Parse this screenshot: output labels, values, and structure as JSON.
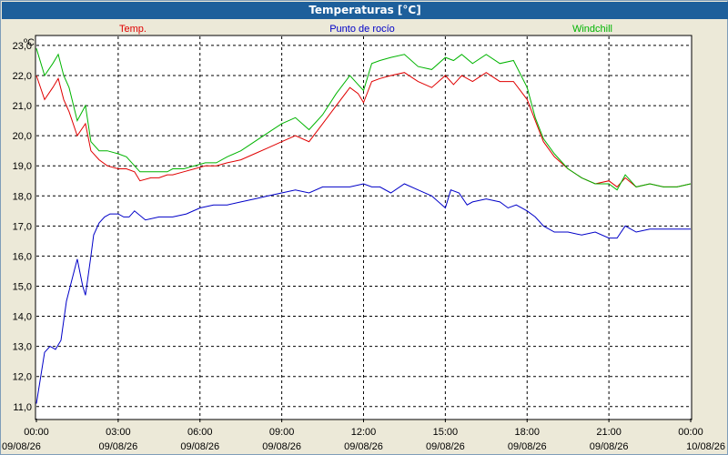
{
  "window": {
    "title": "Temperaturas [°C]"
  },
  "colors": {
    "temp": "#e00000",
    "dew": "#0000c8",
    "windchill": "#00b400",
    "titlebar": "#1d5f9b",
    "background": "#ece9d8"
  },
  "chart_data": {
    "type": "line",
    "title": "Temperaturas [°C]",
    "ylabel": "ºC",
    "ylim": [
      10.6,
      23.3
    ],
    "y_ticks": [
      "23,0",
      "22,0",
      "21,0",
      "20,0",
      "19,0",
      "18,0",
      "17,0",
      "16,0",
      "15,0",
      "14,0",
      "13,0",
      "12,0",
      "11,0"
    ],
    "x_ticks": [
      {
        "time": "00:00",
        "date": "09/08/26"
      },
      {
        "time": "03:00",
        "date": "09/08/26"
      },
      {
        "time": "06:00",
        "date": "09/08/26"
      },
      {
        "time": "09:00",
        "date": "09/08/26"
      },
      {
        "time": "12:00",
        "date": "09/08/26"
      },
      {
        "time": "15:00",
        "date": "09/08/26"
      },
      {
        "time": "18:00",
        "date": "09/08/26"
      },
      {
        "time": "21:00",
        "date": "09/08/26"
      },
      {
        "time": "00:00",
        "date": "10/08/26"
      }
    ],
    "x_unit": "hours",
    "xlim": [
      0,
      24
    ],
    "grid": true,
    "legend": "top",
    "series": [
      {
        "name": "Temp.",
        "color": "#e00000",
        "x": [
          0,
          0.3,
          0.6,
          0.8,
          1.0,
          1.2,
          1.5,
          1.8,
          2.0,
          2.3,
          2.6,
          3.0,
          3.3,
          3.6,
          3.8,
          4.2,
          4.5,
          4.8,
          5.0,
          5.4,
          5.8,
          6.2,
          6.6,
          7.0,
          7.5,
          8.0,
          8.5,
          9.0,
          9.5,
          10.0,
          10.5,
          11.0,
          11.5,
          11.8,
          12.0,
          12.3,
          12.6,
          13.0,
          13.5,
          14.0,
          14.5,
          15.0,
          15.3,
          15.6,
          16.0,
          16.5,
          17.0,
          17.5,
          18.0,
          18.3,
          18.6,
          19.0,
          19.5,
          20.0,
          20.5,
          21.0,
          21.3,
          21.6,
          22.0,
          22.5,
          23.0,
          23.5,
          24.0
        ],
        "y": [
          22.0,
          21.2,
          21.6,
          21.9,
          21.2,
          20.8,
          20.0,
          20.4,
          19.5,
          19.2,
          19.0,
          18.9,
          18.9,
          18.8,
          18.5,
          18.6,
          18.6,
          18.7,
          18.7,
          18.8,
          18.9,
          19.0,
          19.0,
          19.1,
          19.2,
          19.4,
          19.6,
          19.8,
          20.0,
          19.8,
          20.4,
          21.0,
          21.6,
          21.4,
          21.1,
          21.8,
          21.9,
          22.0,
          22.1,
          21.8,
          21.6,
          22.0,
          21.7,
          22.0,
          21.8,
          22.1,
          21.8,
          21.8,
          21.2,
          20.5,
          19.8,
          19.3,
          18.9,
          18.6,
          18.4,
          18.5,
          18.3,
          18.6,
          18.3,
          18.4,
          18.3,
          18.3,
          18.4
        ]
      },
      {
        "name": "Punto de rocío",
        "color": "#0000c8",
        "x": [
          0,
          0.3,
          0.5,
          0.7,
          0.9,
          1.1,
          1.3,
          1.5,
          1.7,
          1.8,
          2.0,
          2.1,
          2.3,
          2.5,
          2.7,
          3.0,
          3.2,
          3.4,
          3.6,
          4.0,
          4.5,
          5.0,
          5.5,
          6.0,
          6.5,
          7.0,
          7.5,
          8.0,
          8.5,
          9.0,
          9.5,
          10.0,
          10.5,
          11.0,
          11.5,
          12.0,
          12.3,
          12.6,
          13.0,
          13.5,
          14.0,
          14.5,
          15.0,
          15.2,
          15.5,
          15.8,
          16.0,
          16.5,
          17.0,
          17.3,
          17.6,
          18.0,
          18.3,
          18.6,
          19.0,
          19.5,
          20.0,
          20.5,
          21.0,
          21.3,
          21.6,
          22.0,
          22.5,
          23.0,
          23.5,
          24.0
        ],
        "y": [
          11.1,
          12.8,
          13.0,
          12.9,
          13.2,
          14.5,
          15.2,
          15.9,
          15.0,
          14.7,
          16.0,
          16.7,
          17.1,
          17.3,
          17.4,
          17.4,
          17.3,
          17.3,
          17.5,
          17.2,
          17.3,
          17.3,
          17.4,
          17.6,
          17.7,
          17.7,
          17.8,
          17.9,
          18.0,
          18.1,
          18.2,
          18.1,
          18.3,
          18.3,
          18.3,
          18.4,
          18.3,
          18.3,
          18.1,
          18.4,
          18.2,
          18.0,
          17.6,
          18.2,
          18.1,
          17.7,
          17.8,
          17.9,
          17.8,
          17.6,
          17.7,
          17.5,
          17.3,
          17.0,
          16.8,
          16.8,
          16.7,
          16.8,
          16.6,
          16.6,
          17.0,
          16.8,
          16.9,
          16.9,
          16.9,
          16.9
        ]
      },
      {
        "name": "Windchill",
        "color": "#00b400",
        "x": [
          0,
          0.3,
          0.6,
          0.8,
          1.0,
          1.2,
          1.5,
          1.8,
          2.0,
          2.3,
          2.6,
          3.0,
          3.3,
          3.6,
          3.8,
          4.2,
          4.5,
          4.8,
          5.0,
          5.4,
          5.8,
          6.2,
          6.6,
          7.0,
          7.5,
          8.0,
          8.5,
          9.0,
          9.5,
          10.0,
          10.5,
          11.0,
          11.5,
          11.8,
          12.0,
          12.3,
          12.6,
          13.0,
          13.5,
          14.0,
          14.5,
          15.0,
          15.3,
          15.6,
          16.0,
          16.5,
          17.0,
          17.5,
          18.0,
          18.3,
          18.6,
          19.0,
          19.5,
          20.0,
          20.5,
          21.0,
          21.3,
          21.6,
          22.0,
          22.5,
          23.0,
          23.5,
          24.0
        ],
        "y": [
          22.9,
          22.0,
          22.4,
          22.7,
          22.0,
          21.6,
          20.5,
          21.0,
          19.8,
          19.5,
          19.5,
          19.4,
          19.3,
          19.0,
          18.8,
          18.8,
          18.8,
          18.8,
          18.9,
          18.9,
          19.0,
          19.1,
          19.1,
          19.3,
          19.5,
          19.8,
          20.1,
          20.4,
          20.6,
          20.2,
          20.7,
          21.4,
          22.0,
          21.7,
          21.5,
          22.4,
          22.5,
          22.6,
          22.7,
          22.3,
          22.2,
          22.6,
          22.5,
          22.7,
          22.4,
          22.7,
          22.4,
          22.5,
          21.6,
          20.6,
          19.9,
          19.4,
          18.9,
          18.6,
          18.4,
          18.4,
          18.2,
          18.7,
          18.3,
          18.4,
          18.3,
          18.3,
          18.4
        ]
      }
    ]
  }
}
